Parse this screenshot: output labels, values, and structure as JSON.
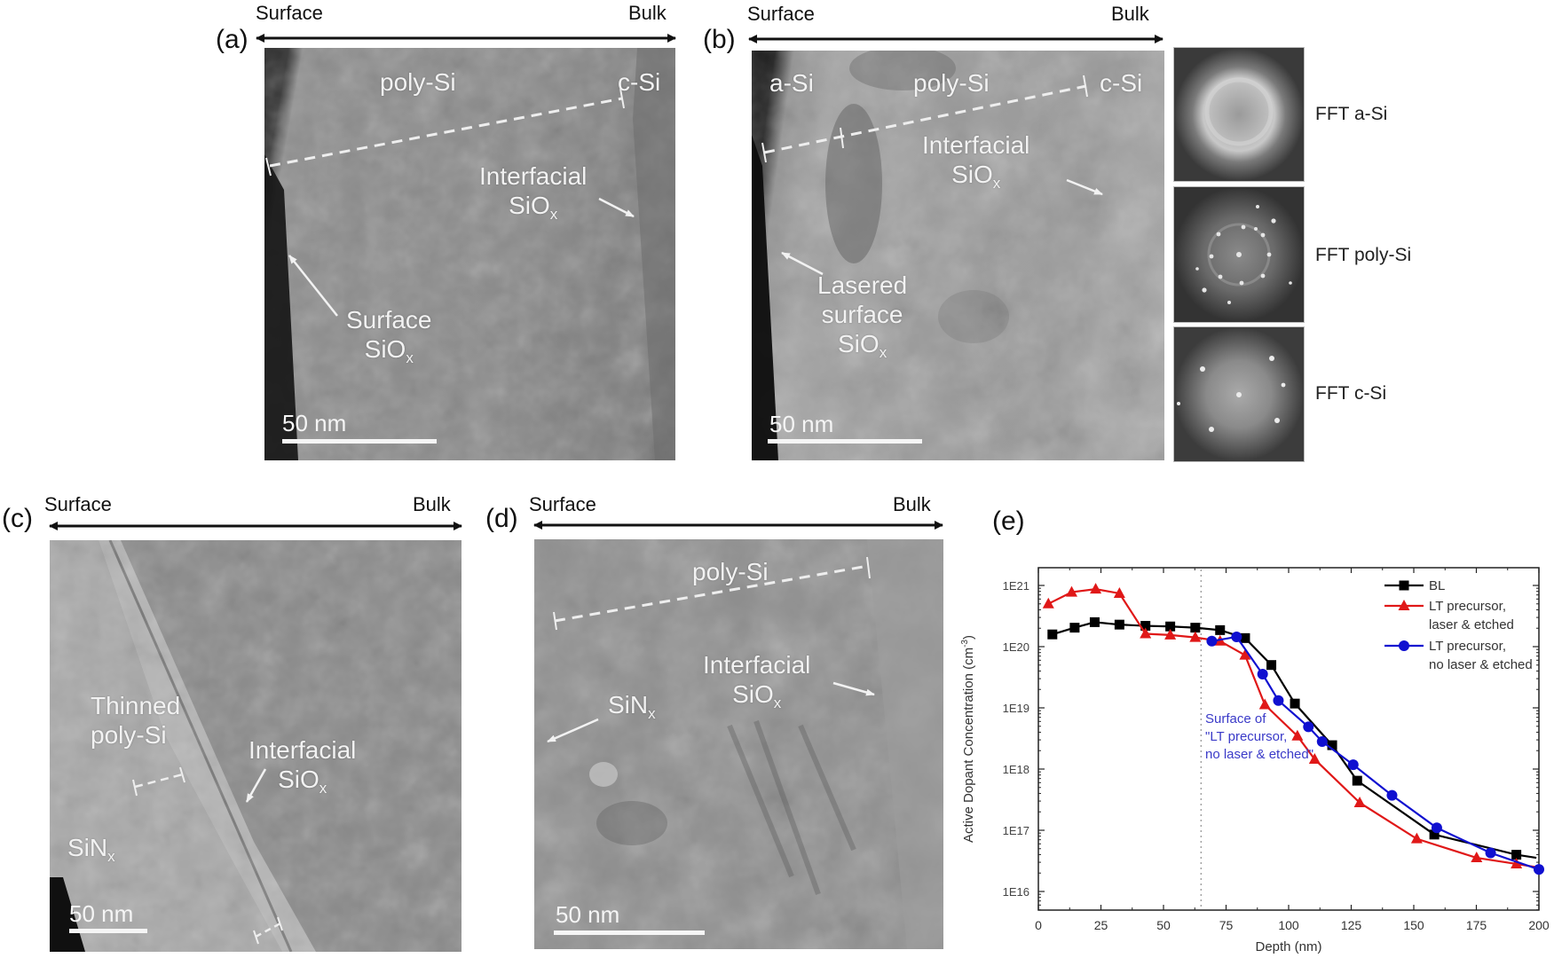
{
  "figure": {
    "panels": {
      "a": {
        "tag": "(a)",
        "direction": {
          "left": "Surface",
          "right": "Bulk"
        },
        "labels": {
          "poly": "poly-Si",
          "csi": "c-Si",
          "interfacial_line1": "Interfacial",
          "interfacial_line2": "SiO",
          "interfacial_sub": "x",
          "surface_line1": "Surface",
          "surface_line2": "SiO",
          "surface_sub": "x"
        },
        "scale_bar": "50 nm"
      },
      "b": {
        "tag": "(b)",
        "direction": {
          "left": "Surface",
          "right": "Bulk"
        },
        "labels": {
          "asi": "a-Si",
          "poly": "poly-Si",
          "csi": "c-Si",
          "interfacial_line1": "Interfacial",
          "interfacial_line2": "SiO",
          "interfacial_sub": "x",
          "lasered_line1": "Lasered",
          "lasered_line2": "surface",
          "lasered_line3": "SiO",
          "lasered_sub": "x"
        },
        "scale_bar": "50 nm",
        "fft": [
          {
            "label": "FFT a-Si",
            "pattern": "diffuse-ring"
          },
          {
            "label": "FFT poly-Si",
            "pattern": "spotty-ring"
          },
          {
            "label": "FFT c-Si",
            "pattern": "discrete-spots"
          }
        ]
      },
      "c": {
        "tag": "(c)",
        "direction": {
          "left": "Surface",
          "right": "Bulk"
        },
        "labels": {
          "thinned_line1": "Thinned",
          "thinned_line2": "poly-Si",
          "interfacial_line1": "Interfacial",
          "interfacial_line2": "SiO",
          "interfacial_sub": "x",
          "sinx": "SiN",
          "sinx_sub": "x"
        },
        "scale_bar": "50 nm"
      },
      "d": {
        "tag": "(d)",
        "direction": {
          "left": "Surface",
          "right": "Bulk"
        },
        "labels": {
          "poly": "poly-Si",
          "interfacial_line1": "Interfacial",
          "interfacial_line2": "SiO",
          "interfacial_sub": "x",
          "sinx": "SiN",
          "sinx_sub": "x"
        },
        "scale_bar": "50 nm"
      },
      "e": {
        "tag": "(e)",
        "annotation_line1": "Surface of",
        "annotation_line2": "\"LT precursor,",
        "annotation_line3": "no laser & etched\"",
        "annotation_color": "#3a3ac8",
        "ylabel": "Active Dopant Concentration (cm",
        "ylabel_sup": "-3",
        "ylabel_end": ")",
        "xlabel": "Depth (nm)",
        "yticks": [
          "1E21",
          "1E20",
          "1E19",
          "1E18",
          "1E17",
          "1E16"
        ],
        "xticks": [
          "0",
          "25",
          "50",
          "75",
          "100",
          "125",
          "150",
          "175",
          "200"
        ],
        "legend": [
          {
            "line1": "BL",
            "line2": "",
            "color": "#000000",
            "marker": "square"
          },
          {
            "line1": "LT precursor,",
            "line2": "laser & etched",
            "color": "#e01818",
            "marker": "triangle"
          },
          {
            "line1": "LT precursor,",
            "line2": "no laser & etched",
            "color": "#1010d0",
            "marker": "circle"
          }
        ]
      }
    }
  },
  "chart_data": {
    "type": "line",
    "title": "",
    "xlabel": "Depth (nm)",
    "ylabel": "Active Dopant Concentration (cm^-3)",
    "xlim": [
      0,
      200
    ],
    "ylim": [
      5000000000000000.0,
      2e+21
    ],
    "yscale": "log",
    "xticks": [
      0,
      25,
      50,
      75,
      100,
      125,
      150,
      175,
      200
    ],
    "yticks": [
      1e+16,
      1e+17,
      1e+18,
      1e+19,
      1e+20,
      1e+21
    ],
    "grid": false,
    "legend_position": "upper right",
    "annotations": [
      {
        "type": "vline",
        "x": 65,
        "style": "dotted",
        "color": "#999999"
      },
      {
        "type": "text",
        "x": 66,
        "y": 3e+17,
        "text": "Surface of \"LT precursor, no laser & etched\"",
        "color": "#3a3ac8"
      }
    ],
    "series": [
      {
        "name": "BL",
        "color": "#000000",
        "marker": "square",
        "x": [
          5.6,
          14.5,
          22.5,
          32.4,
          42.8,
          52.7,
          62.7,
          72.6,
          82.6,
          93.1,
          102.5,
          117.4,
          127.4,
          158.2,
          191,
          199
        ],
        "log10_y": [
          20.2,
          20.31,
          20.4,
          20.36,
          20.34,
          20.33,
          20.31,
          20.27,
          20.14,
          19.7,
          19.07,
          18.39,
          17.81,
          16.93,
          16.6,
          16.55
        ],
        "markers_at": [
          0,
          1,
          2,
          3,
          4,
          5,
          6,
          7,
          8,
          9,
          10,
          11,
          12,
          13,
          14
        ]
      },
      {
        "name": "LT precursor, laser & etched",
        "color": "#e01818",
        "marker": "triangle",
        "x": [
          4,
          13.3,
          22.9,
          32.4,
          42.8,
          52.7,
          62.7,
          72.6,
          82.6,
          90.5,
          103.5,
          110.4,
          128.4,
          151.2,
          175.1,
          191,
          200
        ],
        "log10_y": [
          20.7,
          20.89,
          20.94,
          20.87,
          20.21,
          20.19,
          20.15,
          20.09,
          19.86,
          19.05,
          18.54,
          18.16,
          17.45,
          16.86,
          16.55,
          16.45,
          16.39
        ],
        "markers_at": [
          0,
          1,
          2,
          3,
          4,
          5,
          6,
          7,
          8,
          9,
          10,
          11,
          12,
          13,
          14,
          15
        ]
      },
      {
        "name": "LT precursor, no laser & etched",
        "color": "#1010d0",
        "marker": "circle",
        "x": [
          69.3,
          79.2,
          89.6,
          95.9,
          107.9,
          113.4,
          125.8,
          141.3,
          159.2,
          180.7,
          200
        ],
        "log10_y": [
          20.09,
          20.16,
          19.55,
          19.12,
          18.69,
          18.45,
          18.07,
          17.57,
          17.04,
          16.63,
          16.36
        ],
        "markers_at": [
          0,
          1,
          2,
          3,
          4,
          5,
          6,
          7,
          8,
          9,
          10
        ]
      }
    ]
  }
}
